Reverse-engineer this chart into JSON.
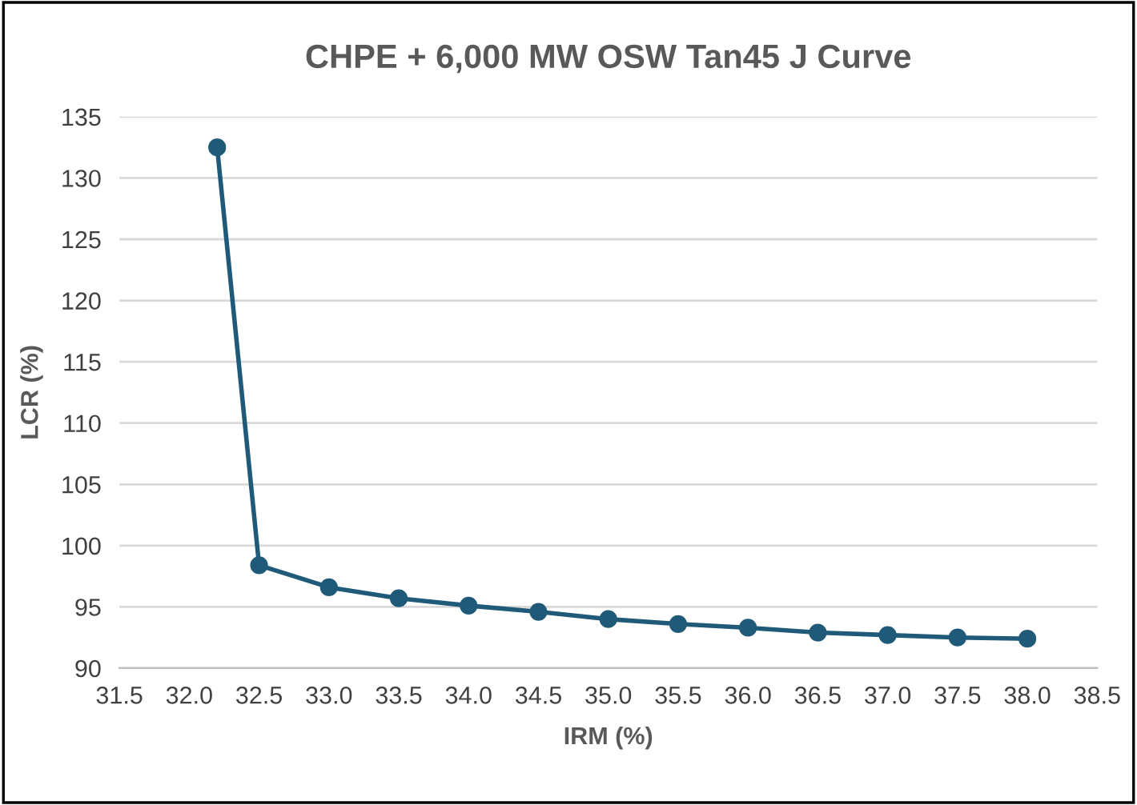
{
  "chart_data": {
    "type": "line",
    "title": "CHPE + 6,000 MW OSW Tan45 J Curve",
    "xlabel": "IRM (%)",
    "ylabel": "LCR (%)",
    "x": [
      32.2,
      32.5,
      33.0,
      33.5,
      34.0,
      34.5,
      35.0,
      35.5,
      36.0,
      36.5,
      37.0,
      37.5,
      38.0
    ],
    "series": [
      {
        "color": "#1f5a78",
        "values": [
          132.5,
          98.4,
          96.6,
          95.7,
          95.1,
          94.6,
          94.0,
          93.6,
          93.3,
          92.9,
          92.7,
          92.5,
          92.4
        ]
      }
    ],
    "xlim": [
      31.5,
      38.5
    ],
    "xticks": [
      {
        "value": 31.5,
        "label": "31.5"
      },
      {
        "value": 32.0,
        "label": "32.0"
      },
      {
        "value": 32.5,
        "label": "32.5"
      },
      {
        "value": 33.0,
        "label": "33.0"
      },
      {
        "value": 33.5,
        "label": "33.5"
      },
      {
        "value": 34.0,
        "label": "34.0"
      },
      {
        "value": 34.5,
        "label": "34.5"
      },
      {
        "value": 35.0,
        "label": "35.0"
      },
      {
        "value": 35.5,
        "label": "35.5"
      },
      {
        "value": 36.0,
        "label": "36.0"
      },
      {
        "value": 36.5,
        "label": "36.5"
      },
      {
        "value": 37.0,
        "label": "37.0"
      },
      {
        "value": 37.5,
        "label": "37.5"
      },
      {
        "value": 38.0,
        "label": "38.0"
      },
      {
        "value": 38.5,
        "label": "38.5"
      }
    ],
    "ylim": [
      90,
      135
    ],
    "yticks": [
      90,
      95,
      100,
      105,
      110,
      115,
      120,
      125,
      130,
      135
    ],
    "grid": "y",
    "marker": "circle",
    "line_style": "solid"
  }
}
